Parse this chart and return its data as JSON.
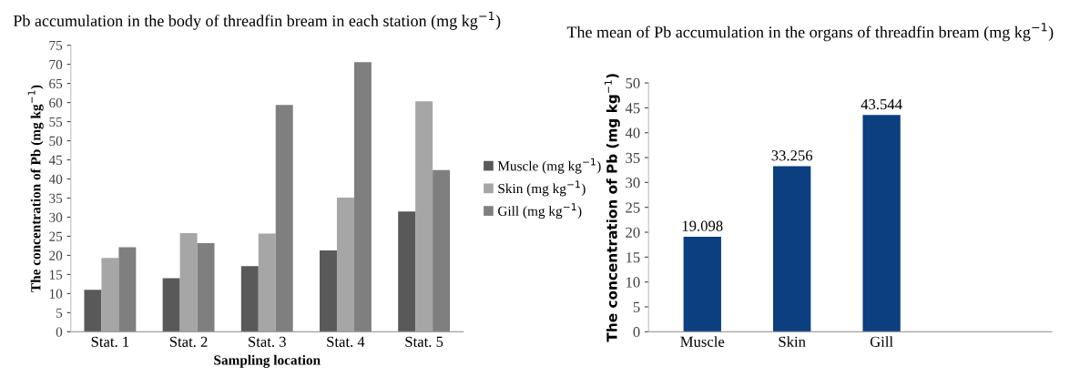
{
  "chart_data": [
    {
      "type": "bar",
      "title": "Pb accumulation in the body of threadfin bream in each station (mg kg$^{−1}$)",
      "xlabel": "Sampling location",
      "ylabel": "The concentration of Pb (mg kg$^{−1}$)",
      "categories": [
        "Stat. 1",
        "Stat. 2",
        "Stat. 3",
        "Stat. 4",
        "Stat. 5"
      ],
      "series": [
        {
          "name": "Muscle (mg kg$^{−1}$)",
          "color": "#595959",
          "values": [
            11,
            14,
            17.2,
            21.3,
            31.5
          ]
        },
        {
          "name": "Skin (mg kg$^{−1}$)",
          "color": "#a6a6a6",
          "values": [
            19.3,
            25.8,
            25.7,
            35.1,
            60.3
          ]
        },
        {
          "name": "Gill (mg kg$^{−1}$)",
          "color": "#7f7f7f",
          "values": [
            22.1,
            23.2,
            59.4,
            70.6,
            42.3
          ]
        }
      ],
      "ylim": [
        0,
        75
      ],
      "yticks": [
        0,
        5,
        10,
        15,
        20,
        25,
        30,
        35,
        40,
        45,
        50,
        55,
        60,
        65,
        70,
        75
      ],
      "legend": "right",
      "grid": false
    },
    {
      "type": "bar",
      "title": "The mean of Pb accumulation in the organs of threadfin bream (mg kg$^{−1}$)",
      "ylabel": "The concentration of Pb (mg kg$^{−1}$)",
      "categories": [
        "Muscle",
        "Skin",
        "Gill"
      ],
      "values": [
        19.098,
        33.256,
        43.544
      ],
      "color": "#0b3f7f",
      "data_labels": true,
      "ylim": [
        0,
        50
      ],
      "yticks": [
        0,
        5,
        10,
        15,
        20,
        25,
        30,
        35,
        40,
        45,
        50
      ],
      "grid": false
    }
  ]
}
